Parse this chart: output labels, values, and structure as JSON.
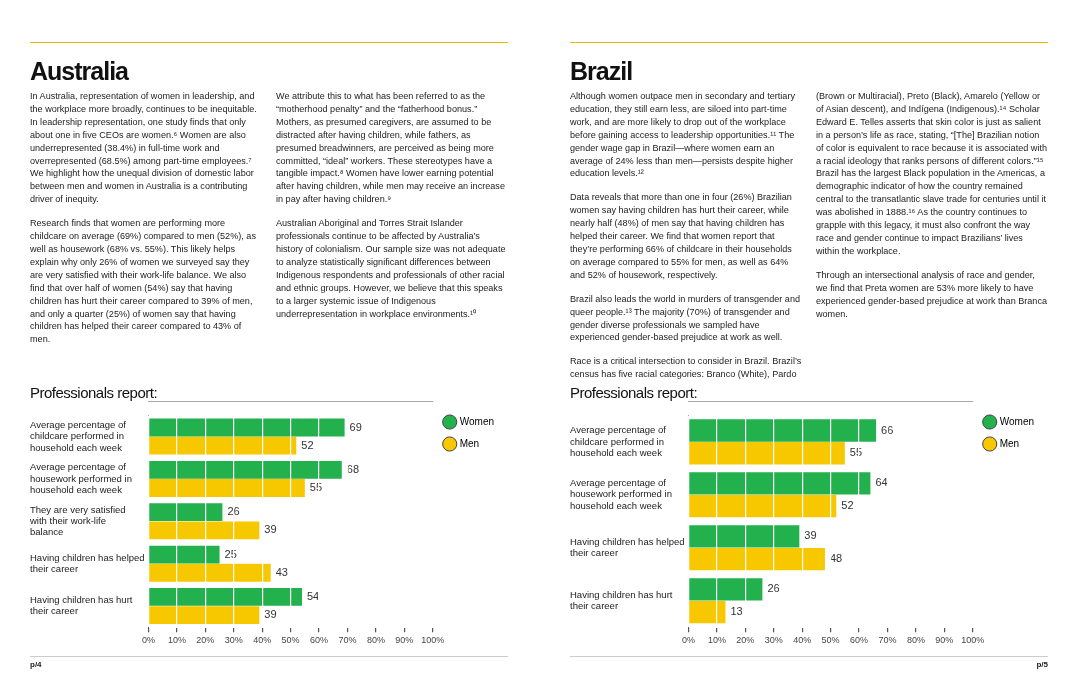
{
  "chart_data": [
    {
      "type": "bar",
      "orientation": "horizontal",
      "title": "Australia",
      "subtitle": "Professionals report:",
      "annotations": [
        "In Australia, representation of women in leadership, and the workplace more broadly, continues to be inequitable. In leadership representation, one study finds that only about one in five CEOs are women.⁶ Women are also underrepresented (38.4%) in full-time work and overrepresented (68.5%) among part-time employees.⁷ We highlight how the unequal division of domestic labor between men and women in Australia is a contributing driver of inequity.",
        "Research finds that women are performing more childcare on average (69%) compared to men (52%), as well as housework (68% vs. 55%). This likely helps explain why only 26% of women we surveyed say they are very satisfied with their work-life balance. We also find that over half of women (54%) say that having children has hurt their career compared to 39% of men, and only a quarter (25%) of women say that having children has helped their career compared to 43% of men.",
        "We attribute this to what has been referred to as the “motherhood penalty” and the “fatherhood bonus.” Mothers, as presumed caregivers, are assumed to be distracted after having children, while fathers, as presumed breadwinners, are perceived as being more committed, “ideal” workers. These stereotypes have a tangible impact.⁸ Women have lower earning potential after having children, while men may receive an increase in pay after having children.⁹",
        "Australian Aboriginal and Torres Strait Islander professionals continue to be affected by Australia’s history of colonialism. Our sample size was not adequate to analyze statistically significant differences between Indigenous respondents and professionals of other racial and ethnic groups. However, we believe that this speaks to a larger systemic issue of Indigenous underrepresentation in workplace environments.¹⁰",
        "p/4"
      ],
      "categories": [
        "Average percentage of childcare performed in household each week",
        "Average percentage of housework performed in household each week",
        "They are very satisfied with their work-life balance",
        "Having children has helped their career",
        "Having children has hurt their career"
      ],
      "series": [
        {
          "name": "Women",
          "color": "#22b14c",
          "values": [
            69,
            68,
            26,
            25,
            54
          ]
        },
        {
          "name": "Men",
          "color": "#f7c800",
          "values": [
            52,
            55,
            39,
            43,
            39
          ]
        }
      ],
      "xlim": [
        0,
        100
      ],
      "xticks": [
        {
          "value": 0,
          "label": "0%"
        },
        {
          "value": 10,
          "label": "10%"
        },
        {
          "value": 20,
          "label": "20%"
        },
        {
          "value": 30,
          "label": "30%"
        },
        {
          "value": 40,
          "label": "40%"
        },
        {
          "value": 50,
          "label": "50%"
        },
        {
          "value": 60,
          "label": "60%"
        },
        {
          "value": 70,
          "label": "70%"
        },
        {
          "value": 80,
          "label": "80%"
        },
        {
          "value": 90,
          "label": "90%"
        },
        {
          "value": 100,
          "label": "100%"
        }
      ],
      "grid": "x",
      "legend": "top right",
      "data_labels": true
    },
    {
      "type": "bar",
      "orientation": "horizontal",
      "title": "Brazil",
      "subtitle": "Professionals report:",
      "annotations": [
        "Although women outpace men in secondary and tertiary education, they still earn less, are siloed into part-time work, and are more likely to drop out of the workplace before gaining access to leadership opportunities.¹¹ The gender wage gap in Brazil—where women earn an average of 24% less than men—persists despite higher education levels.¹²",
        "Data reveals that more than one in four (26%) Brazilian women say having children has hurt their career, while nearly half (48%) of men say that having children has helped their career. We find that women report that they’re performing 66% of childcare in their households on average compared to 55% for men, as well as 64% and 52% of housework, respectively.",
        "Brazil also leads the world in murders of transgender and queer people.¹³ The majority (70%) of transgender and gender diverse professionals we sampled have experienced gender-based prejudice at work as well.",
        "Race is a critical intersection to consider in Brazil. Brazil’s census has five racial categories: Branco (White), Pardo (Brown or Multiracial), Preto (Black), Amarelo (Yellow or of Asian descent), and Indígena (Indigenous).¹⁴ Scholar Edward E. Telles asserts that skin color is just as salient in a person’s life as race, stating, “[The] Brazilian notion of color is equivalent to race because it is associated with a racial ideology that ranks persons of different colors.”¹⁵ Brazil has the largest Black population in the Americas, a demographic indicator of how the country remained central to the transatlantic slave trade for centuries until it was abolished in 1888.¹⁶ As the country continues to grapple with this legacy, it must also confront the way race and gender continue to impact Brazilians’ lives within the workplace.",
        "Through an intersectional analysis of race and gender, we find that Preta women are 53% more likely to have experienced gender-based prejudice at work than Branca women.",
        "p/5"
      ],
      "categories": [
        "Average percentage of childcare performed in household each week",
        "Average percentage of housework performed in household each week",
        "Having children has helped their career",
        "Having children has hurt their career"
      ],
      "series": [
        {
          "name": "Women",
          "color": "#22b14c",
          "values": [
            66,
            64,
            39,
            26
          ]
        },
        {
          "name": "Men",
          "color": "#f7c800",
          "values": [
            55,
            52,
            48,
            13
          ]
        }
      ],
      "xlim": [
        0,
        100
      ],
      "xticks": [
        {
          "value": 0,
          "label": "0%"
        },
        {
          "value": 10,
          "label": "10%"
        },
        {
          "value": 20,
          "label": "20%"
        },
        {
          "value": 30,
          "label": "30%"
        },
        {
          "value": 40,
          "label": "40%"
        },
        {
          "value": 50,
          "label": "50%"
        },
        {
          "value": 60,
          "label": "60%"
        },
        {
          "value": 70,
          "label": "70%"
        },
        {
          "value": 80,
          "label": "80%"
        },
        {
          "value": 90,
          "label": "90%"
        },
        {
          "value": 100,
          "label": "100%"
        }
      ],
      "grid": "x",
      "legend": "top right",
      "data_labels": true
    }
  ]
}
